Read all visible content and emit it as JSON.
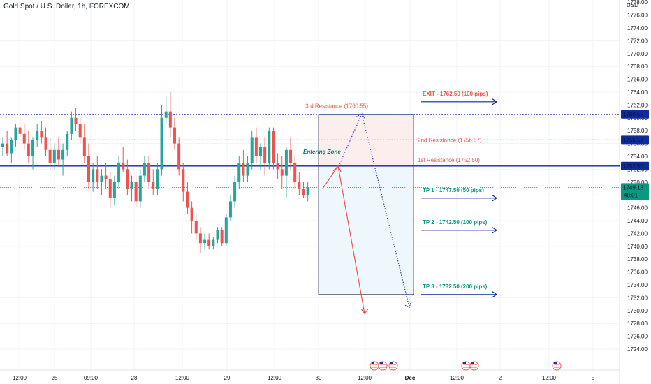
{
  "chart_title": "Gold Spot / U.S. Dollar, 1h, FOREXCOM",
  "currency": "USD",
  "colors": {
    "up": "#26a69a",
    "down": "#ef5350",
    "blue_line": "#0d2a9e",
    "dotted_blue": "#3245c2",
    "red_arrow": "#ef5350",
    "tp_green": "#089981",
    "price_tag_green": "#089981",
    "zone_red_fill": "#fdeeee",
    "zone_blue_fill": "#eef7fb"
  },
  "chart_data": {
    "type": "candlestick",
    "symbol": "Gold Spot / U.S. Dollar",
    "timeframe": "1h",
    "ylim": [
      1723,
      1779
    ],
    "y_ticks": [
      1724,
      1726,
      1728,
      1730,
      1732,
      1734,
      1736,
      1738,
      1740,
      1742,
      1744,
      1746,
      1748,
      1750,
      1752,
      1754,
      1756,
      1758,
      1760,
      1762,
      1764,
      1766,
      1768,
      1770,
      1772,
      1774,
      1776,
      1778
    ],
    "y_tick_labels": [
      "1724.00",
      "1726.00",
      "1728.00",
      "1730.00",
      "1732.00",
      "1734.00",
      "1736.00",
      "1738.00",
      "1740.00",
      "1742.00",
      "1744.00",
      "1746.00",
      "1748.00",
      "1750.00",
      "1752.00",
      "1754.00",
      "1756.00",
      "1758.00",
      "1760.00",
      "1762.00",
      "1764.00",
      "1766.00",
      "1768.00",
      "1770.00",
      "1772.00",
      "1774.00",
      "1776.00",
      "1778.00"
    ],
    "x_tick_labels": [
      "12:00",
      "25",
      "09:00",
      "28",
      "12:00",
      "29",
      "12:00",
      "30",
      "12:00",
      "Dec",
      "12:00",
      "2",
      "12:00",
      "5"
    ],
    "candles": [
      [
        1755.5,
        1757,
        1754,
        1756
      ],
      [
        1756,
        1758,
        1754,
        1754.5
      ],
      [
        1754.5,
        1757,
        1753,
        1756.5
      ],
      [
        1756.5,
        1759,
        1755.5,
        1758.5
      ],
      [
        1758.5,
        1760,
        1757,
        1757.5
      ],
      [
        1757.5,
        1759,
        1755,
        1756
      ],
      [
        1756,
        1758,
        1753,
        1754
      ],
      [
        1754,
        1757,
        1752,
        1756.5
      ],
      [
        1756.5,
        1759,
        1755.5,
        1758
      ],
      [
        1758,
        1759.5,
        1756,
        1757
      ],
      [
        1757,
        1758.5,
        1754,
        1755
      ],
      [
        1755,
        1757,
        1752,
        1753
      ],
      [
        1753,
        1756,
        1752,
        1755
      ],
      [
        1755,
        1757,
        1752.5,
        1753.5
      ],
      [
        1753.5,
        1756,
        1751,
        1755
      ],
      [
        1755,
        1758,
        1754,
        1757.5
      ],
      [
        1757.5,
        1761,
        1756.5,
        1760
      ],
      [
        1760,
        1761.5,
        1758,
        1759
      ],
      [
        1759,
        1760,
        1756,
        1757
      ],
      [
        1757,
        1759,
        1753,
        1754
      ],
      [
        1754,
        1756,
        1749,
        1750
      ],
      [
        1750,
        1753,
        1748.5,
        1752
      ],
      [
        1752,
        1754,
        1749,
        1750
      ],
      [
        1750,
        1752,
        1748,
        1751
      ],
      [
        1751,
        1753,
        1749,
        1750.5
      ],
      [
        1750.5,
        1751.5,
        1746,
        1747.5
      ],
      [
        1747.5,
        1751,
        1746.5,
        1750
      ],
      [
        1750,
        1754,
        1749,
        1753
      ],
      [
        1753,
        1755.5,
        1751.5,
        1752
      ],
      [
        1752,
        1753.5,
        1748,
        1749
      ],
      [
        1749,
        1751,
        1747,
        1750
      ],
      [
        1750,
        1751,
        1746,
        1747
      ],
      [
        1747,
        1752,
        1746,
        1751
      ],
      [
        1751,
        1754,
        1750,
        1753
      ],
      [
        1753,
        1754,
        1749,
        1750
      ],
      [
        1750,
        1752,
        1748,
        1749
      ],
      [
        1749,
        1753,
        1748,
        1752
      ],
      [
        1752,
        1762,
        1751,
        1760
      ],
      [
        1760,
        1763.5,
        1759,
        1761
      ],
      [
        1761,
        1764,
        1757,
        1758.5
      ],
      [
        1758.5,
        1760,
        1755,
        1756
      ],
      [
        1756,
        1757,
        1751,
        1752
      ],
      [
        1752,
        1753,
        1747,
        1748.5
      ],
      [
        1748.5,
        1750,
        1745,
        1746
      ],
      [
        1746,
        1747,
        1742,
        1744
      ],
      [
        1744,
        1745,
        1741,
        1742
      ],
      [
        1742,
        1743,
        1739,
        1740.5
      ],
      [
        1740.5,
        1742,
        1739.5,
        1741
      ],
      [
        1741,
        1742,
        1739.5,
        1740
      ],
      [
        1740,
        1741.5,
        1739.5,
        1741
      ],
      [
        1741,
        1743,
        1740.5,
        1742.5
      ],
      [
        1742.5,
        1743,
        1740,
        1740.5
      ],
      [
        1740.5,
        1745,
        1740,
        1744.5
      ],
      [
        1744.5,
        1748,
        1744,
        1747
      ],
      [
        1747,
        1751,
        1746,
        1750
      ],
      [
        1750,
        1754,
        1749,
        1753
      ],
      [
        1753,
        1755,
        1750,
        1751
      ],
      [
        1751,
        1754,
        1750,
        1753
      ],
      [
        1753,
        1758,
        1752,
        1757
      ],
      [
        1757,
        1758.5,
        1753,
        1754
      ],
      [
        1754,
        1756,
        1752,
        1755.5
      ],
      [
        1755.5,
        1757,
        1751,
        1753
      ],
      [
        1753,
        1758.5,
        1752,
        1758
      ],
      [
        1758,
        1758.5,
        1752,
        1753
      ],
      [
        1753,
        1754.5,
        1750.5,
        1752
      ],
      [
        1752,
        1754,
        1749,
        1751
      ],
      [
        1751,
        1755.5,
        1747.5,
        1755
      ],
      [
        1755,
        1757,
        1752,
        1753
      ],
      [
        1753,
        1754,
        1749,
        1750
      ],
      [
        1750,
        1751.5,
        1748,
        1749
      ],
      [
        1749,
        1750,
        1747.5,
        1748
      ],
      [
        1748,
        1750,
        1747,
        1749.2
      ]
    ],
    "annotations": {
      "current_price": 1749.18,
      "current_price_label": "1749.18",
      "countdown": "40:01",
      "level_exit": 1760.55,
      "level_exit_label": "1760.55",
      "level_r2": 1756.57,
      "level_r2_label": "1756.57",
      "level_entry": 1752.5,
      "level_entry_label": "1752.50",
      "zone_top": 1760.55,
      "zone_mid": 1752.5,
      "zone_bottom": 1732.5,
      "labels": {
        "r3": "3rd Resistance (1760.55)",
        "r2": "2nd Resistance (1756.57)",
        "r1": "1st Resistance (1752.50)",
        "entering": "Entering Zone",
        "exit": "EXIT - 1762.50 (100 pips)",
        "tp1": "TP 1 - 1747.50 (50 pips)",
        "tp2": "TP 2 - 1742.50 (100 pips)",
        "tp3": "TP 3 - 1732.50 (200 pips)"
      },
      "label_prices": {
        "exit": 1762.5,
        "tp1": 1747.5,
        "tp2": 1742.5,
        "tp3": 1732.5,
        "r3": 1760.55,
        "r2": 1756.57,
        "r1": 1752.5,
        "entering": 1753
      },
      "red_path_prices": [
        1749,
        1752.5,
        1729.5
      ],
      "dotted_path_prices": [
        1752.5,
        1760.6,
        1730.5
      ],
      "event_icon_groups": [
        3,
        2,
        1
      ]
    }
  }
}
